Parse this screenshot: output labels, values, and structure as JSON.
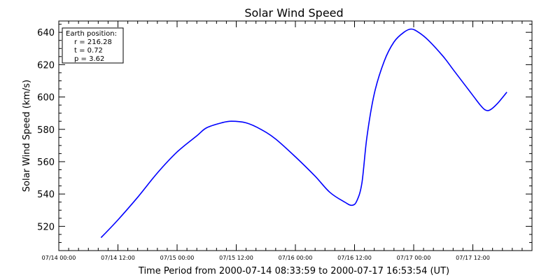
{
  "chart_data": {
    "type": "line",
    "title": "Solar Wind Speed",
    "ylabel": "Solar Wind Speed (km/s)",
    "xlabel": "Time Period from 2000-07-14 08:33:59 to 2000-07-17 16:53:54 (UT)",
    "x_range_hours": [
      0,
      96
    ],
    "ylim": [
      505,
      647
    ],
    "y_ticks": [
      520,
      540,
      560,
      580,
      600,
      620,
      640
    ],
    "x_ticks": [
      {
        "hour": 0,
        "label": "07/14 00:00"
      },
      {
        "hour": 12,
        "label": "07/14 12:00"
      },
      {
        "hour": 24,
        "label": "07/15 00:00"
      },
      {
        "hour": 36,
        "label": "07/15 12:00"
      },
      {
        "hour": 48,
        "label": "07/16 00:00"
      },
      {
        "hour": 60,
        "label": "07/16 12:00"
      },
      {
        "hour": 72,
        "label": "07/17 00:00"
      },
      {
        "hour": 84,
        "label": "07/17 12:00"
      }
    ],
    "series": [
      {
        "color": "#0000ff",
        "x_hours": [
          8.57,
          12,
          16,
          20,
          24,
          28,
          30,
          33,
          35,
          38,
          41,
          44,
          48,
          52,
          55,
          58,
          59.5,
          60.5,
          61.5,
          62.5,
          64,
          66,
          68,
          70,
          71.5,
          73,
          75,
          78,
          80,
          82,
          84,
          85.5,
          86.5,
          87.5,
          89,
          90.9
        ],
        "values": [
          513,
          524,
          538,
          553,
          566,
          576,
          581,
          584,
          585,
          584,
          580,
          574,
          563,
          551,
          541,
          535,
          533,
          536,
          547,
          575,
          602,
          622,
          634,
          640,
          642,
          640,
          635,
          625,
          617,
          609,
          601,
          595,
          592,
          592,
          596,
          603
        ]
      }
    ]
  },
  "info_box": {
    "header": "Earth position:",
    "lines": [
      "r = 216.28",
      "t = 0.72",
      "p = 3.62"
    ]
  }
}
